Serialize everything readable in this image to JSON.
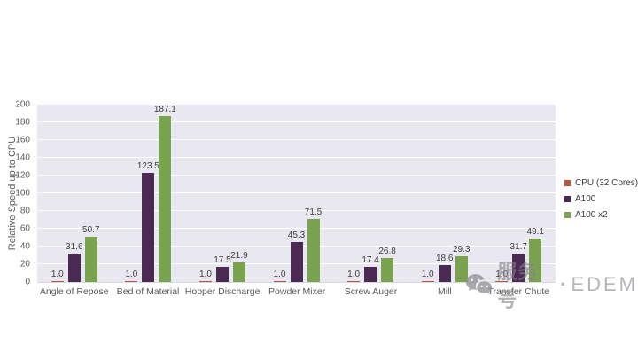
{
  "page": {
    "background": "#ffffff"
  },
  "chart_data": {
    "type": "bar",
    "title": "",
    "xlabel": "",
    "ylabel": "Relative Speed up to CPU",
    "ylim": [
      0,
      200
    ],
    "ytick_step": 20,
    "yticks": [
      0,
      20,
      40,
      60,
      80,
      100,
      120,
      140,
      160,
      180,
      200
    ],
    "grid": true,
    "legend_position": "right",
    "plot_background": "#e9e8f0",
    "gridline_color": "#ffffff",
    "categories": [
      "Angle of Repose",
      "Bed of Material",
      "Hopper Discharge",
      "Powder Mixer",
      "Screw Auger",
      "Mill",
      "Transfer Chute"
    ],
    "series": [
      {
        "name": "CPU (32 Cores)",
        "color": "#b9563f",
        "values": [
          1.0,
          1.0,
          1.0,
          1.0,
          1.0,
          1.0,
          1.0
        ]
      },
      {
        "name": "A100",
        "color": "#4a2a52",
        "values": [
          31.6,
          123.5,
          17.5,
          45.3,
          17.4,
          18.6,
          31.7
        ]
      },
      {
        "name": "A100 x2",
        "color": "#7aa350",
        "values": [
          50.7,
          187.1,
          21.9,
          71.5,
          26.8,
          29.3,
          49.1
        ]
      }
    ]
  },
  "watermark": {
    "icon": "wechat-icon",
    "label_cn": "服务号",
    "separator": "·",
    "label_en": "EDEM"
  }
}
